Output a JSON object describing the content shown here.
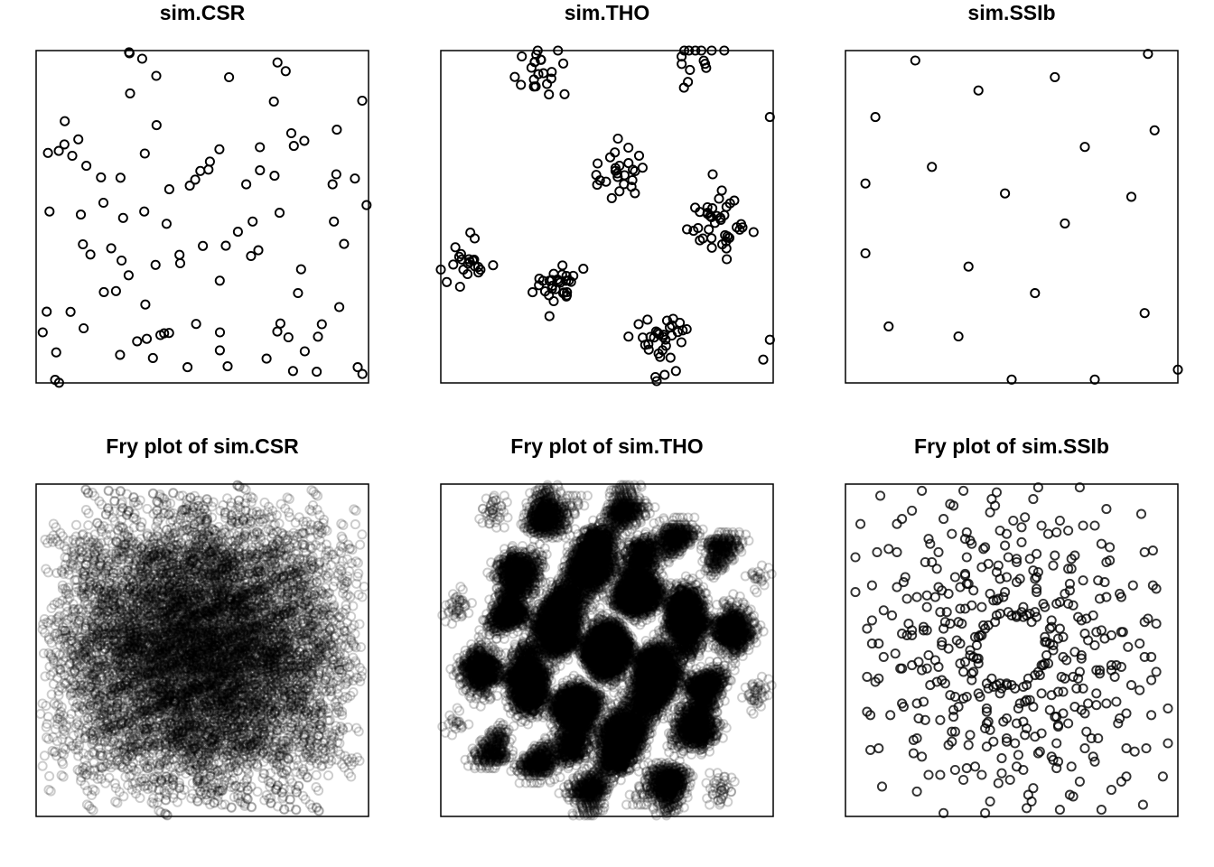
{
  "figure": {
    "colors": {
      "point": "#000000",
      "background": "#ffffff",
      "frame": "#000000"
    }
  },
  "chart_data": [
    {
      "type": "scatter",
      "title": "sim.CSR",
      "xlabel": "",
      "ylabel": "",
      "xlim": [
        0,
        1
      ],
      "ylim": [
        0,
        1
      ],
      "axes_shown": false,
      "grid": false,
      "legend": "none",
      "marker": "open-circle",
      "generated": {
        "process": "csr",
        "n": 100,
        "seed": 11
      }
    },
    {
      "type": "scatter",
      "title": "sim.THO",
      "xlabel": "",
      "ylabel": "",
      "xlim": [
        0,
        1
      ],
      "ylim": [
        0,
        1
      ],
      "axes_shown": false,
      "grid": false,
      "legend": "none",
      "marker": "open-circle",
      "generated": {
        "process": "clusters",
        "seed": 23,
        "clusters": [
          {
            "x": 0.32,
            "y": 0.93,
            "r": 0.06,
            "n": 22
          },
          {
            "x": 0.77,
            "y": 0.98,
            "r": 0.06,
            "n": 14
          },
          {
            "x": 0.52,
            "y": 0.63,
            "r": 0.07,
            "n": 26
          },
          {
            "x": 0.82,
            "y": 0.48,
            "r": 0.08,
            "n": 40
          },
          {
            "x": 0.07,
            "y": 0.36,
            "r": 0.06,
            "n": 22
          },
          {
            "x": 0.35,
            "y": 0.29,
            "r": 0.06,
            "n": 30
          },
          {
            "x": 0.67,
            "y": 0.13,
            "r": 0.07,
            "n": 34
          }
        ],
        "extra": [
          [
            0.99,
            0.8
          ],
          [
            0.99,
            0.13
          ],
          [
            0.97,
            0.07
          ]
        ]
      }
    },
    {
      "type": "scatter",
      "title": "sim.SSIb",
      "xlabel": "",
      "ylabel": "",
      "xlim": [
        0,
        1
      ],
      "ylim": [
        0,
        1
      ],
      "axes_shown": false,
      "grid": false,
      "legend": "none",
      "marker": "open-circle",
      "points": [
        [
          0.21,
          0.97
        ],
        [
          0.91,
          0.99
        ],
        [
          0.09,
          0.8
        ],
        [
          0.4,
          0.88
        ],
        [
          0.63,
          0.92
        ],
        [
          0.72,
          0.71
        ],
        [
          0.93,
          0.76
        ],
        [
          0.26,
          0.65
        ],
        [
          0.06,
          0.6
        ],
        [
          0.48,
          0.57
        ],
        [
          0.86,
          0.56
        ],
        [
          0.66,
          0.48
        ],
        [
          0.06,
          0.39
        ],
        [
          0.37,
          0.35
        ],
        [
          0.57,
          0.27
        ],
        [
          0.9,
          0.21
        ],
        [
          0.13,
          0.17
        ],
        [
          0.34,
          0.14
        ],
        [
          0.5,
          0.01
        ],
        [
          0.75,
          0.01
        ],
        [
          1.0,
          0.04
        ]
      ]
    },
    {
      "type": "scatter",
      "title": "Fry plot of sim.CSR",
      "xlabel": "",
      "ylabel": "",
      "xlim": [
        -1,
        1
      ],
      "ylim": [
        -1,
        1
      ],
      "axes_shown": false,
      "grid": false,
      "legend": "none",
      "marker": "open-circle",
      "marker_alpha": 0.2,
      "derived_from": "sim.CSR"
    },
    {
      "type": "scatter",
      "title": "Fry plot of sim.THO",
      "xlabel": "",
      "ylabel": "",
      "xlim": [
        -1,
        1
      ],
      "ylim": [
        -1,
        1
      ],
      "axes_shown": false,
      "grid": false,
      "legend": "none",
      "marker": "open-circle",
      "marker_alpha": 0.2,
      "derived_from": "sim.THO"
    },
    {
      "type": "scatter",
      "title": "Fry plot of sim.SSIb",
      "xlabel": "",
      "ylabel": "",
      "xlim": [
        -1,
        1
      ],
      "ylim": [
        -1,
        1
      ],
      "axes_shown": false,
      "grid": false,
      "legend": "none",
      "marker": "open-circle",
      "marker_alpha": 0.8,
      "derived_from": "sim.SSIb"
    }
  ]
}
